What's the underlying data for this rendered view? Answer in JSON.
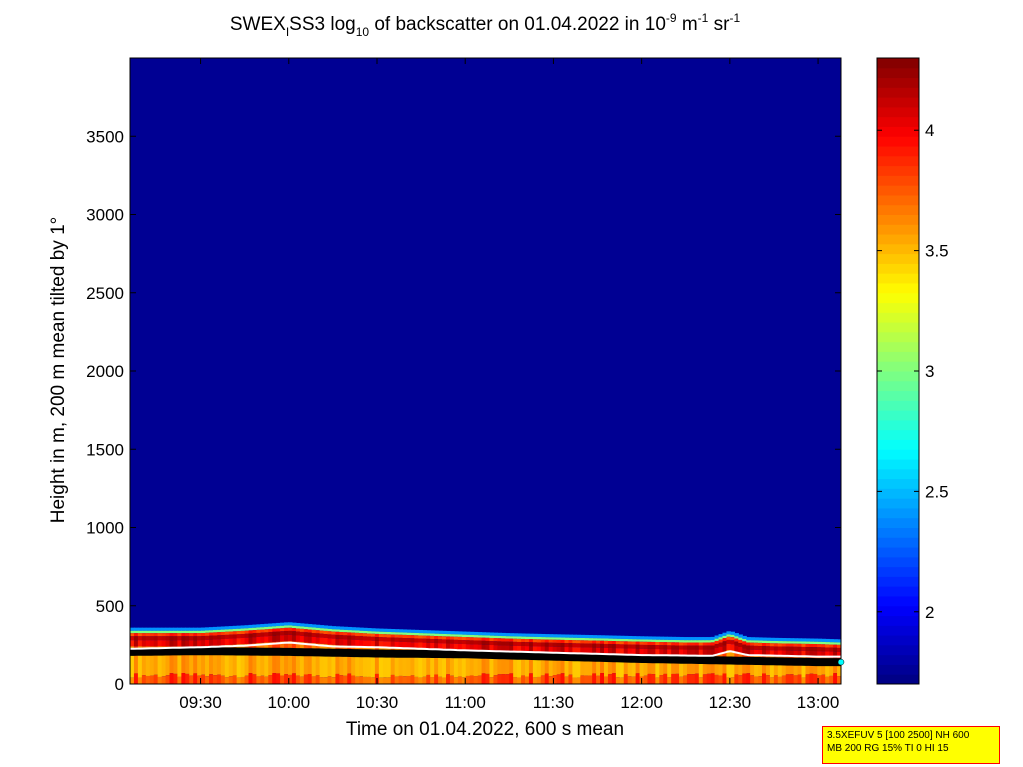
{
  "chart_data": {
    "type": "heatmap",
    "title": {
      "p1": "SWEX",
      "sub_i": "I",
      "p2": "SS3 log",
      "sub_10": "10",
      "p3": " of backscatter on 01.04.2022 in 10",
      "sup_m9": "-9",
      "p4": " m",
      "sup_m1a": "-1",
      "p5": " sr",
      "sup_m1b": "-1"
    },
    "xlabel": "Time on 01.04.2022, 600 s mean",
    "ylabel": "Height in m, 200 m mean tilted by 1°",
    "xlim_hours": [
      9.1,
      13.13
    ],
    "ylim": [
      0,
      4000
    ],
    "x_ticks": [
      {
        "value": 9.5,
        "label": "09:30"
      },
      {
        "value": 10.0,
        "label": "10:00"
      },
      {
        "value": 10.5,
        "label": "10:30"
      },
      {
        "value": 11.0,
        "label": "11:00"
      },
      {
        "value": 11.5,
        "label": "11:30"
      },
      {
        "value": 12.0,
        "label": "12:00"
      },
      {
        "value": 12.5,
        "label": "12:30"
      },
      {
        "value": 13.0,
        "label": "13:00"
      }
    ],
    "y_ticks": [
      {
        "value": 0,
        "label": "0"
      },
      {
        "value": 500,
        "label": "500"
      },
      {
        "value": 1000,
        "label": "1000"
      },
      {
        "value": 1500,
        "label": "1500"
      },
      {
        "value": 2000,
        "label": "2000"
      },
      {
        "value": 2500,
        "label": "2500"
      },
      {
        "value": 3000,
        "label": "3000"
      },
      {
        "value": 3500,
        "label": "3500"
      }
    ],
    "colorbar": {
      "range": [
        1.7,
        4.3
      ],
      "ticks": [
        {
          "value": 2.0,
          "label": "2"
        },
        {
          "value": 2.5,
          "label": "2.5"
        },
        {
          "value": 3.0,
          "label": "3"
        },
        {
          "value": 3.5,
          "label": "3.5"
        },
        {
          "value": 4.0,
          "label": "4"
        }
      ],
      "colormap": "jet"
    },
    "background_value": 1.75,
    "boundary_layer_top_m": {
      "x_hours": [
        9.1,
        9.5,
        9.75,
        10.0,
        10.25,
        10.5,
        10.75,
        11.0,
        11.25,
        11.5,
        11.75,
        12.0,
        12.25,
        12.4,
        12.5,
        12.6,
        12.75,
        13.0,
        13.13
      ],
      "values": [
        360,
        360,
        375,
        395,
        370,
        355,
        345,
        335,
        325,
        318,
        312,
        305,
        300,
        300,
        340,
        300,
        295,
        290,
        285
      ]
    },
    "mixing_height_m": {
      "x_hours": [
        9.1,
        9.5,
        10.0,
        10.25,
        10.5,
        11.0,
        11.5,
        12.0,
        12.5,
        13.0,
        13.13
      ],
      "values": [
        205,
        210,
        205,
        200,
        195,
        190,
        175,
        160,
        150,
        140,
        140
      ]
    },
    "white_line_m": {
      "x_hours": [
        9.1,
        9.5,
        9.75,
        10.0,
        10.25,
        10.5,
        10.75,
        11.0,
        11.5,
        12.0,
        12.4,
        12.5,
        12.6,
        13.0,
        13.13
      ],
      "values": [
        225,
        235,
        245,
        265,
        240,
        235,
        225,
        215,
        200,
        185,
        180,
        210,
        185,
        175,
        175
      ]
    }
  },
  "info_box": {
    "line1": "3.5XEFUV 5 [100 2500] NH 600",
    "line2": "MB 200 RG 15% TI 0 HI 15"
  }
}
